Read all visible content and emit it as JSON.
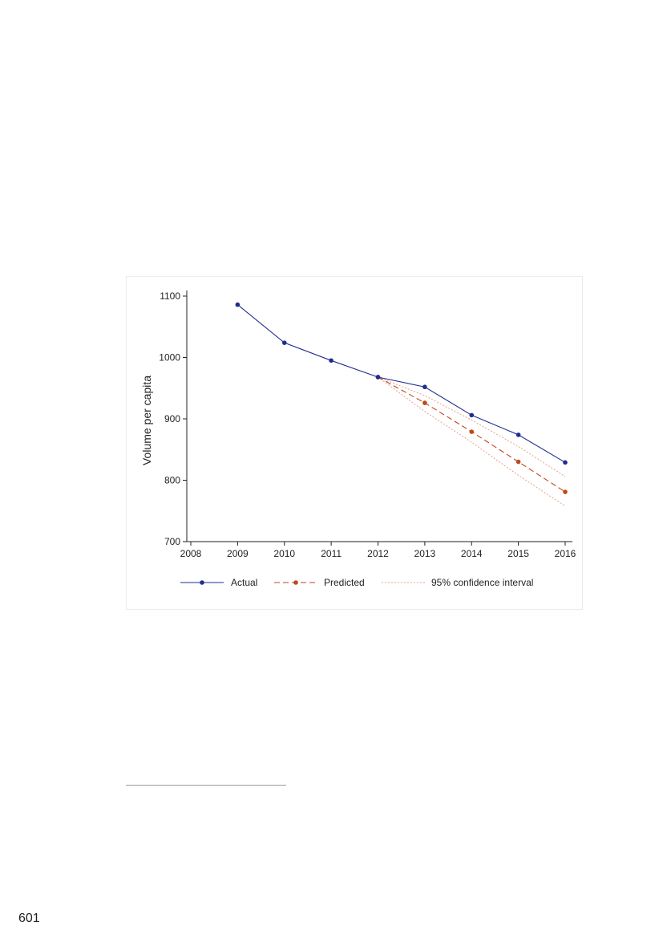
{
  "page": {
    "page_number": "601"
  },
  "chart_data": {
    "type": "line",
    "title": "",
    "xlabel": "",
    "ylabel": "Volume per capita",
    "x": [
      2008,
      2009,
      2010,
      2011,
      2012,
      2013,
      2014,
      2015,
      2016
    ],
    "xlim": [
      2008,
      2016
    ],
    "ylim": [
      700,
      1100
    ],
    "yticks": [
      700,
      800,
      900,
      1000,
      1100
    ],
    "grid": false,
    "legend_position": "bottom",
    "colors": {
      "actual": "#1f2d8f",
      "predicted": "#c2461b",
      "ci": "#e8a08a"
    },
    "series": [
      {
        "name": "Actual",
        "style": "solid-markers",
        "x": [
          2009,
          2010,
          2011,
          2012,
          2013,
          2014,
          2015,
          2016
        ],
        "y": [
          1086,
          1024,
          995,
          968,
          952,
          906,
          874,
          829
        ]
      },
      {
        "name": "Predicted",
        "style": "dashed-markers",
        "x": [
          2012,
          2013,
          2014,
          2015,
          2016
        ],
        "y": [
          968,
          926,
          879,
          830,
          781
        ]
      },
      {
        "name": "95% confidence interval",
        "style": "dotted",
        "bands": [
          {
            "x": [
              2012,
              2013,
              2014,
              2015,
              2016
            ],
            "y": [
              968,
              938,
              898,
              855,
              806
            ]
          },
          {
            "x": [
              2012,
              2013,
              2014,
              2015,
              2016
            ],
            "y": [
              968,
              912,
              862,
              808,
              758
            ]
          }
        ]
      }
    ]
  }
}
